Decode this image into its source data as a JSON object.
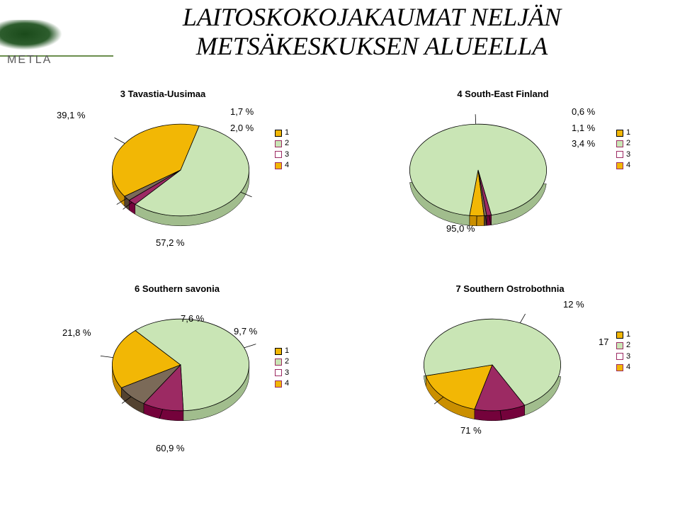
{
  "logo_text": "METLA",
  "title_line1": "LAITOSKOKOJAKAUMAT NELJÄN",
  "title_line2": "METSÄKESKUKSEN ALUEELLA",
  "colors": {
    "series": [
      "#f2b705",
      "#c9e5b5",
      "#9c2a63",
      "#7b6a58"
    ],
    "outline": "#000000",
    "shadow": "#6a6a6a"
  },
  "legend_items": [
    "1",
    "2",
    "3",
    "4"
  ],
  "legend_swatch_styles": [
    {
      "fill": "#f2b705",
      "border": "#000000"
    },
    {
      "fill": "#c9e5b5",
      "border": "#9c2a63"
    },
    {
      "fill": "#ffffff",
      "border": "#9c2a63"
    },
    {
      "fill": "#f2b705",
      "border": "#9c2a63"
    }
  ],
  "charts": [
    {
      "id": "c1",
      "title": "3 Tavastia-Uusimaa",
      "type": "pie",
      "slices": [
        39.1,
        57.2,
        2.0,
        1.7
      ],
      "labels": [
        "39,1 %",
        "57,2 %",
        "2,0 %",
        "1,7 %"
      ],
      "start_angle_deg": 145
    },
    {
      "id": "c2",
      "title": "4 South-East Finland",
      "type": "pie",
      "slices": [
        3.4,
        95.0,
        1.1,
        0.6
      ],
      "labels": [
        "3,4 %",
        "95,0 %",
        "1,1 %",
        "0,6 %"
      ],
      "start_angle_deg": 85
    },
    {
      "id": "c3",
      "title": "6 Southern savonia",
      "type": "pie",
      "slices": [
        21.8,
        60.9,
        9.7,
        7.6
      ],
      "labels": [
        "21,8 %",
        "60,9 %",
        "9,7 %",
        "7,6 %"
      ],
      "start_angle_deg": 150
    },
    {
      "id": "c4",
      "title": "7 Southern Ostrobothnia",
      "type": "pie",
      "slices": [
        17,
        71,
        12,
        0
      ],
      "labels": [
        "17",
        "71 %",
        "12 %",
        null
      ],
      "start_angle_deg": 105
    }
  ]
}
